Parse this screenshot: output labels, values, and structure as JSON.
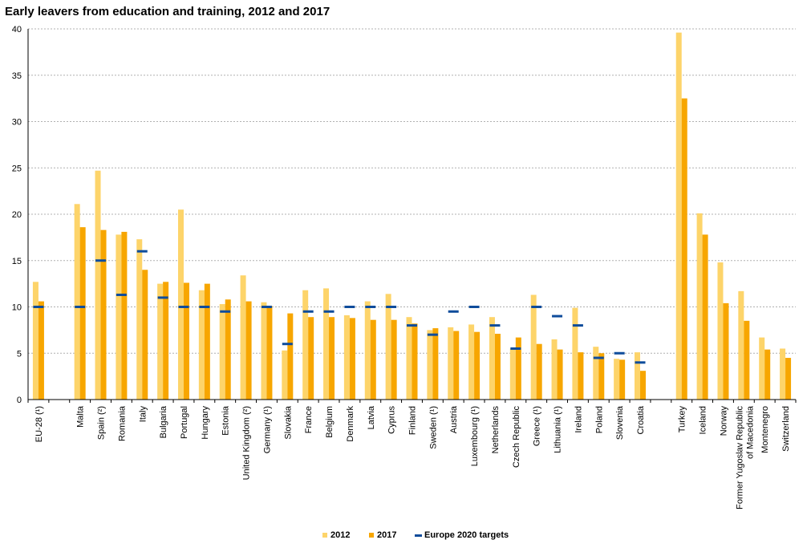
{
  "chart_data": {
    "type": "bar",
    "title": "Early leavers from education and training, 2012 and 2017",
    "ylim": [
      0,
      40
    ],
    "yticks": [
      0,
      5,
      10,
      15,
      20,
      25,
      30,
      35,
      40
    ],
    "grid": true,
    "legend_position": "bottom-center",
    "categories": [
      "EU-28 (¹)",
      "",
      "Malta",
      "Spain (²)",
      "Romania",
      "Italy",
      "Bulgaria",
      "Portugal",
      "Hungary",
      "Estonia",
      "United Kingdom (²)",
      "Germany (¹)",
      "Slovakia",
      "France",
      "Belgium",
      "Denmark",
      "Latvia",
      "Cyprus",
      "Finland",
      "Sweden (¹)",
      "Austria",
      "Luxembourg (¹)",
      "Netherlands",
      "Czech Republic",
      "Greece (¹)",
      "Lithuania (¹)",
      "Ireland",
      "Poland",
      "Slovenia",
      "Croatia",
      "",
      "Turkey",
      "Iceland",
      "Norway",
      "Former Yugoslav Republic of Macedonia",
      "Montenegro",
      "Switzerland"
    ],
    "series": [
      {
        "name": "2012",
        "color": "#fdd46a",
        "values": [
          12.7,
          null,
          21.1,
          24.7,
          17.8,
          17.3,
          12.5,
          20.5,
          11.8,
          10.3,
          13.4,
          10.5,
          5.3,
          11.8,
          12.0,
          9.1,
          10.6,
          11.4,
          8.9,
          7.5,
          7.8,
          8.1,
          8.9,
          5.5,
          11.3,
          6.5,
          9.9,
          5.7,
          4.4,
          5.1,
          null,
          39.6,
          20.1,
          14.8,
          11.7,
          6.7,
          5.5
        ]
      },
      {
        "name": "2017",
        "color": "#f7a600",
        "values": [
          10.6,
          null,
          18.6,
          18.3,
          18.1,
          14.0,
          12.7,
          12.6,
          12.5,
          10.8,
          10.6,
          10.1,
          9.3,
          8.9,
          8.9,
          8.8,
          8.6,
          8.6,
          8.2,
          7.7,
          7.4,
          7.3,
          7.1,
          6.7,
          6.0,
          5.4,
          5.1,
          5.0,
          4.3,
          3.1,
          null,
          32.5,
          17.8,
          10.4,
          8.5,
          5.4,
          4.5
        ]
      },
      {
        "name": "Europe 2020 targets",
        "color": "#0f4c9b",
        "values": [
          10,
          null,
          10,
          15,
          11.3,
          16,
          11,
          10,
          10,
          9.5,
          null,
          10,
          6,
          9.5,
          9.5,
          10,
          10,
          10,
          8,
          7,
          9.5,
          10,
          8,
          5.5,
          10,
          9,
          8,
          4.5,
          5,
          4,
          null,
          null,
          null,
          null,
          null,
          null,
          null
        ]
      }
    ]
  }
}
